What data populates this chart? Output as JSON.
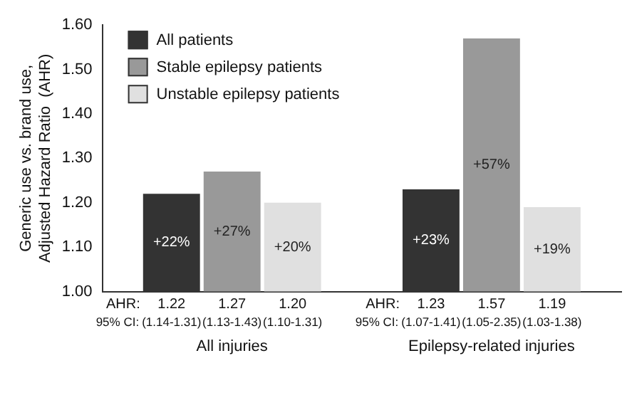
{
  "chart_data": {
    "type": "bar",
    "categories": [
      "All injuries",
      "Epilepsy-related injuries"
    ],
    "series": [
      {
        "name": "All patients",
        "color": "#333333",
        "values": [
          1.22,
          1.23
        ],
        "value_labels": [
          "1.22",
          "1.23"
        ]
      },
      {
        "name": "Stable epilepsy patients",
        "color": "#999999",
        "values": [
          1.27,
          1.57
        ],
        "value_labels": [
          "1.27",
          "1.57"
        ]
      },
      {
        "name": "Unstable epilepsy patients",
        "color": "#e0e0e0",
        "values": [
          1.2,
          1.19
        ],
        "value_labels": [
          "1.20",
          "1.19"
        ]
      }
    ],
    "ylabel": "Generic use vs. brand use, Adjusted Hazard Ratio  (AHR)",
    "ylim": [
      1.0,
      1.6
    ],
    "yticks": [
      {
        "value": 1.0,
        "label": "1.00"
      },
      {
        "value": 1.1,
        "label": "1.10"
      },
      {
        "value": 1.2,
        "label": "1.20"
      },
      {
        "value": 1.3,
        "label": "1.30"
      },
      {
        "value": 1.4,
        "label": "1.40"
      },
      {
        "value": 1.5,
        "label": "1.50"
      },
      {
        "value": 1.6,
        "label": "1.60"
      }
    ],
    "annotations": [
      "AHR:",
      "95% CI:",
      "(1.14-1.31)",
      "(1.13-1.43)",
      "(1.10-1.31)",
      "(1.07-1.41)",
      "(1.05-2.35)",
      "(1.03-1.38)",
      "+22%",
      "+27%",
      "+20%",
      "+23%",
      "+57%",
      "+19%"
    ],
    "grid": false,
    "legend": "top left"
  }
}
